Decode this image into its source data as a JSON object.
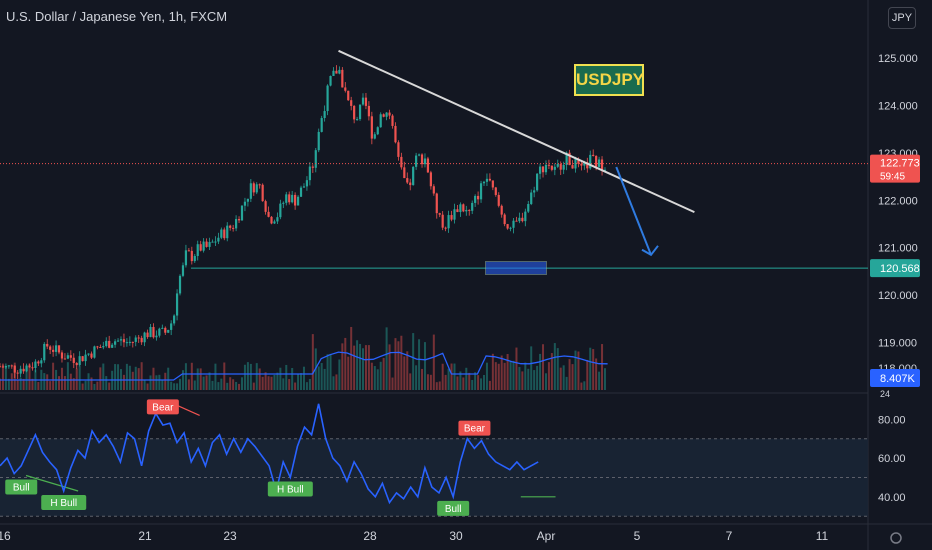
{
  "header": {
    "title": "U.S. Dollar / Japanese Yen, 1h, FXCM",
    "currency_button": "JPY",
    "annotation": "USDJPY"
  },
  "price_tags": {
    "last_price": "122.773",
    "countdown": "59:45",
    "support_level": "120.568",
    "volume_ma": "8.407K",
    "volume_partial": "24",
    "price_partial": "118.000"
  },
  "colors": {
    "background": "#131722",
    "up": "#26a69a",
    "down": "#ef5350",
    "trendline": "#d8d8d8",
    "support": "#26a69a",
    "rsi": "#2962ff",
    "arrow": "#2f7be0",
    "bull_label": "#4caf50",
    "bear_label": "#ef5350"
  },
  "chart_data": [
    {
      "type": "candlestick",
      "title": "U.S. Dollar / Japanese Yen, 1h, FXCM",
      "y_axis_ticks": [
        "125.000",
        "124.000",
        "123.000",
        "122.000",
        "121.000",
        "120.000",
        "119.000"
      ],
      "y_tick_values": [
        125,
        124,
        123,
        122,
        121,
        120,
        119
      ],
      "ylim": [
        118,
        125.8
      ],
      "x_ticks": [
        "16",
        "21",
        "23",
        "28",
        "30",
        "Apr",
        "5",
        "7",
        "11"
      ],
      "close_path": [
        {
          "t": 0,
          "v": 118.5
        },
        {
          "t": 2,
          "v": 118.45
        },
        {
          "t": 4,
          "v": 118.55
        },
        {
          "t": 5.5,
          "v": 118.95
        },
        {
          "t": 7,
          "v": 118.75
        },
        {
          "t": 9,
          "v": 118.65
        },
        {
          "t": 11,
          "v": 118.85
        },
        {
          "t": 13,
          "v": 119.05
        },
        {
          "t": 15,
          "v": 119.0
        },
        {
          "t": 17,
          "v": 119.2
        },
        {
          "t": 19,
          "v": 119.2
        },
        {
          "t": 20,
          "v": 119.5
        },
        {
          "t": 20.5,
          "v": 120.3
        },
        {
          "t": 21,
          "v": 120.5
        },
        {
          "t": 21.5,
          "v": 120.9
        },
        {
          "t": 22,
          "v": 120.8
        },
        {
          "t": 23,
          "v": 121.0
        },
        {
          "t": 24,
          "v": 121.0
        },
        {
          "t": 25,
          "v": 121.2
        },
        {
          "t": 26,
          "v": 121.35
        },
        {
          "t": 27,
          "v": 121.5
        },
        {
          "t": 28,
          "v": 121.9
        },
        {
          "t": 29,
          "v": 122.3
        },
        {
          "t": 30,
          "v": 122.3
        },
        {
          "t": 31,
          "v": 121.6
        },
        {
          "t": 32,
          "v": 121.7
        },
        {
          "t": 33,
          "v": 122.1
        },
        {
          "t": 34,
          "v": 122.0
        },
        {
          "t": 35,
          "v": 122.3
        },
        {
          "t": 36,
          "v": 122.7
        },
        {
          "t": 37,
          "v": 123.7
        },
        {
          "t": 38,
          "v": 124.5
        },
        {
          "t": 39,
          "v": 124.8
        },
        {
          "t": 40,
          "v": 124.1
        },
        {
          "t": 41,
          "v": 123.7
        },
        {
          "t": 42,
          "v": 124.1
        },
        {
          "t": 43,
          "v": 123.3
        },
        {
          "t": 44,
          "v": 123.9
        },
        {
          "t": 45,
          "v": 123.8
        },
        {
          "t": 46,
          "v": 122.7
        },
        {
          "t": 47,
          "v": 122.2
        },
        {
          "t": 48,
          "v": 122.9
        },
        {
          "t": 49,
          "v": 122.9
        },
        {
          "t": 50,
          "v": 122.0
        },
        {
          "t": 51,
          "v": 121.4
        },
        {
          "t": 52,
          "v": 121.7
        },
        {
          "t": 53,
          "v": 121.9
        },
        {
          "t": 54,
          "v": 121.7
        },
        {
          "t": 55,
          "v": 122.1
        },
        {
          "t": 56,
          "v": 122.5
        },
        {
          "t": 57,
          "v": 122.1
        },
        {
          "t": 58,
          "v": 121.6
        },
        {
          "t": 59,
          "v": 121.4
        },
        {
          "t": 60,
          "v": 121.6
        },
        {
          "t": 61,
          "v": 122.0
        },
        {
          "t": 62,
          "v": 122.6
        },
        {
          "t": 63,
          "v": 122.8
        },
        {
          "t": 64,
          "v": 122.6
        },
        {
          "t": 65,
          "v": 122.9
        },
        {
          "t": 66,
          "v": 122.8
        },
        {
          "t": 67,
          "v": 122.6
        },
        {
          "t": 68,
          "v": 122.85
        },
        {
          "t": 69,
          "v": 122.75
        },
        {
          "t": 70,
          "v": 122.77
        }
      ],
      "trendline": {
        "start": {
          "t": 39,
          "v": 125.15
        },
        "end": {
          "t": 80,
          "v": 121.75
        }
      },
      "support_line": {
        "start_t": 22,
        "value": 120.568
      },
      "forecast_arrow": {
        "start": {
          "t": 71,
          "v": 122.7
        },
        "end": {
          "t": 75,
          "v": 120.85
        }
      },
      "volume": {
        "series_name": "Volume",
        "moving_average_label": "8.407K"
      }
    },
    {
      "type": "line",
      "title": "",
      "y_axis_ticks": [
        "80.00",
        "60.00",
        "40.00"
      ],
      "y_tick_values": [
        80,
        60,
        40
      ],
      "ylim": [
        27,
        91
      ],
      "band": [
        30,
        70
      ],
      "midline": 50,
      "series": [
        {
          "points": [
            {
              "t": 0,
              "v": 56
            },
            {
              "t": 1,
              "v": 60
            },
            {
              "t": 2,
              "v": 52
            },
            {
              "t": 3,
              "v": 56
            },
            {
              "t": 4,
              "v": 64
            },
            {
              "t": 5,
              "v": 72
            },
            {
              "t": 6,
              "v": 63
            },
            {
              "t": 7,
              "v": 58
            },
            {
              "t": 8,
              "v": 54
            },
            {
              "t": 9,
              "v": 43
            },
            {
              "t": 10,
              "v": 55
            },
            {
              "t": 11,
              "v": 64
            },
            {
              "t": 12,
              "v": 60
            },
            {
              "t": 13,
              "v": 74
            },
            {
              "t": 14,
              "v": 68
            },
            {
              "t": 15,
              "v": 72
            },
            {
              "t": 16,
              "v": 66
            },
            {
              "t": 17,
              "v": 58
            },
            {
              "t": 18,
              "v": 73
            },
            {
              "t": 19,
              "v": 70
            },
            {
              "t": 20,
              "v": 56
            },
            {
              "t": 21,
              "v": 74
            },
            {
              "t": 22,
              "v": 83
            },
            {
              "t": 23,
              "v": 77
            },
            {
              "t": 24,
              "v": 78
            },
            {
              "t": 25,
              "v": 68
            },
            {
              "t": 26,
              "v": 73
            },
            {
              "t": 27,
              "v": 58
            },
            {
              "t": 28,
              "v": 65
            },
            {
              "t": 29,
              "v": 56
            },
            {
              "t": 30,
              "v": 68
            },
            {
              "t": 31,
              "v": 72
            },
            {
              "t": 32,
              "v": 62
            },
            {
              "t": 33,
              "v": 70
            },
            {
              "t": 34,
              "v": 63
            },
            {
              "t": 35,
              "v": 70
            },
            {
              "t": 36,
              "v": 66
            },
            {
              "t": 37,
              "v": 61
            },
            {
              "t": 38,
              "v": 56
            },
            {
              "t": 39,
              "v": 43
            },
            {
              "t": 40,
              "v": 58
            },
            {
              "t": 41,
              "v": 50
            },
            {
              "t": 42,
              "v": 66
            },
            {
              "t": 43,
              "v": 76
            },
            {
              "t": 44,
              "v": 72
            },
            {
              "t": 45,
              "v": 88
            },
            {
              "t": 46,
              "v": 70
            },
            {
              "t": 47,
              "v": 60
            },
            {
              "t": 48,
              "v": 56
            },
            {
              "t": 49,
              "v": 48
            },
            {
              "t": 50,
              "v": 58
            },
            {
              "t": 51,
              "v": 52
            },
            {
              "t": 52,
              "v": 44
            },
            {
              "t": 53,
              "v": 40
            },
            {
              "t": 54,
              "v": 47
            },
            {
              "t": 55,
              "v": 37
            },
            {
              "t": 56,
              "v": 42
            },
            {
              "t": 57,
              "v": 39
            },
            {
              "t": 58,
              "v": 45
            },
            {
              "t": 59,
              "v": 40
            },
            {
              "t": 60,
              "v": 55
            },
            {
              "t": 61,
              "v": 45
            },
            {
              "t": 62,
              "v": 42
            },
            {
              "t": 63,
              "v": 50
            },
            {
              "t": 64,
              "v": 40
            },
            {
              "t": 65,
              "v": 58
            },
            {
              "t": 66,
              "v": 70
            },
            {
              "t": 67,
              "v": 65
            },
            {
              "t": 68,
              "v": 69
            },
            {
              "t": 69,
              "v": 62
            },
            {
              "t": 70,
              "v": 58
            },
            {
              "t": 71,
              "v": 56
            },
            {
              "t": 72,
              "v": 54
            },
            {
              "t": 73,
              "v": 58
            },
            {
              "t": 74,
              "v": 54
            },
            {
              "t": 75,
              "v": 56
            },
            {
              "t": 76,
              "v": 58
            }
          ]
        }
      ],
      "divergence_labels": [
        {
          "text": "Bull",
          "t": 3,
          "v": 51
        },
        {
          "text": "H Bull",
          "t": 9,
          "v": 43
        },
        {
          "text": "Bear",
          "t": 23,
          "v": 80
        },
        {
          "text": "H Bull",
          "t": 41,
          "v": 50
        },
        {
          "text": "Bull",
          "t": 64,
          "v": 40
        },
        {
          "text": "Bear",
          "t": 67,
          "v": 69
        }
      ]
    }
  ]
}
